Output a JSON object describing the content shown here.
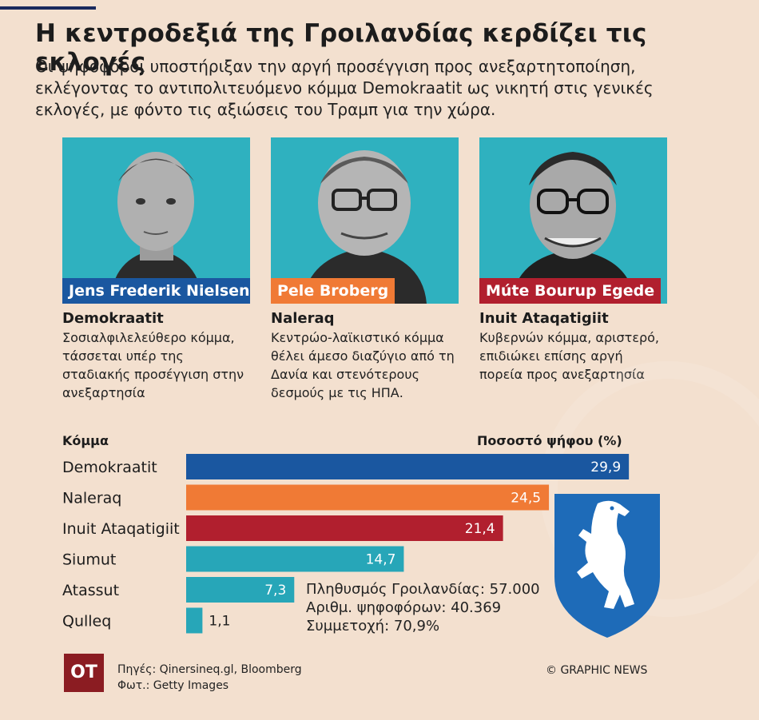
{
  "headline": "Η κεντροδεξιά της Γροιλανδίας κερδίζει τις εκλογές",
  "subline": "Οι ψηφοφόροι υποστήριξαν την αργή προσέγγιση προς ανεξαρτητοποίηση, εκλέγοντας το αντιπολιτευόμενο κόμμα Demokraatit ως νικητή στις γενικές εκλογές, με φόντο τις αξιώσεις του Τραμπ για την χώρα.",
  "candidates": [
    {
      "name": "Jens Frederik Nielsen",
      "party": "Demokraatit",
      "desc": "Σοσιαλφιλελεύθερο κόμμα, τάσσεται υπέρ της σταδιακής προσέγγιση στην ανεξαρτησία",
      "color": "#1a57a0"
    },
    {
      "name": "Pele Broberg",
      "party": "Naleraq",
      "desc": "Κεντρώο-λαϊκιστικό κόμμα θέλει άμεσο διαζύγιο από τη Δανία και στενότερους δεσμούς με τις ΗΠΑ.",
      "color": "#f07a35"
    },
    {
      "name": "Múte Bourup Egede",
      "party": "Inuit Ataqatigiit",
      "desc": "Κυβερνών κόμμα, αριστερό, επιδιώκει επίσης αργή πορεία προς ανεξαρτησία",
      "color": "#b11f2e"
    }
  ],
  "table_headers": {
    "party": "Κόμμα",
    "share": "Ποσοστό ψήφου (%)"
  },
  "chart_data": {
    "type": "bar",
    "orientation": "horizontal",
    "categories": [
      "Demokraatit",
      "Naleraq",
      "Inuit Ataqatigiit",
      "Siumut",
      "Atassut",
      "Qulleq"
    ],
    "values": [
      29.9,
      24.5,
      21.4,
      14.7,
      7.3,
      1.1
    ],
    "value_labels": [
      "29,9",
      "24,5",
      "21,4",
      "14,7",
      "7,3",
      "1,1"
    ],
    "colors": [
      "#1a57a0",
      "#f07a35",
      "#b11f2e",
      "#27a6b8",
      "#27a6b8",
      "#27a6b8"
    ],
    "xlabel": "Ποσοστό ψήφου (%)",
    "ylabel": "Κόμμα",
    "xlim": [
      0,
      30
    ]
  },
  "stats": [
    "Πληθυσμός Γροιλανδίας: 57.000",
    "Αριθμ. ψηφοφόρων: 40.369",
    "Συμμετοχή: 70,9%"
  ],
  "logo": "OT",
  "sources": [
    "Πηγές: Qinersineq.gl, Bloomberg",
    "Φωτ.: Getty Images"
  ],
  "credit": "© GRAPHIC NEWS",
  "icons": {
    "emblem": "polar-bear-shield-icon"
  }
}
